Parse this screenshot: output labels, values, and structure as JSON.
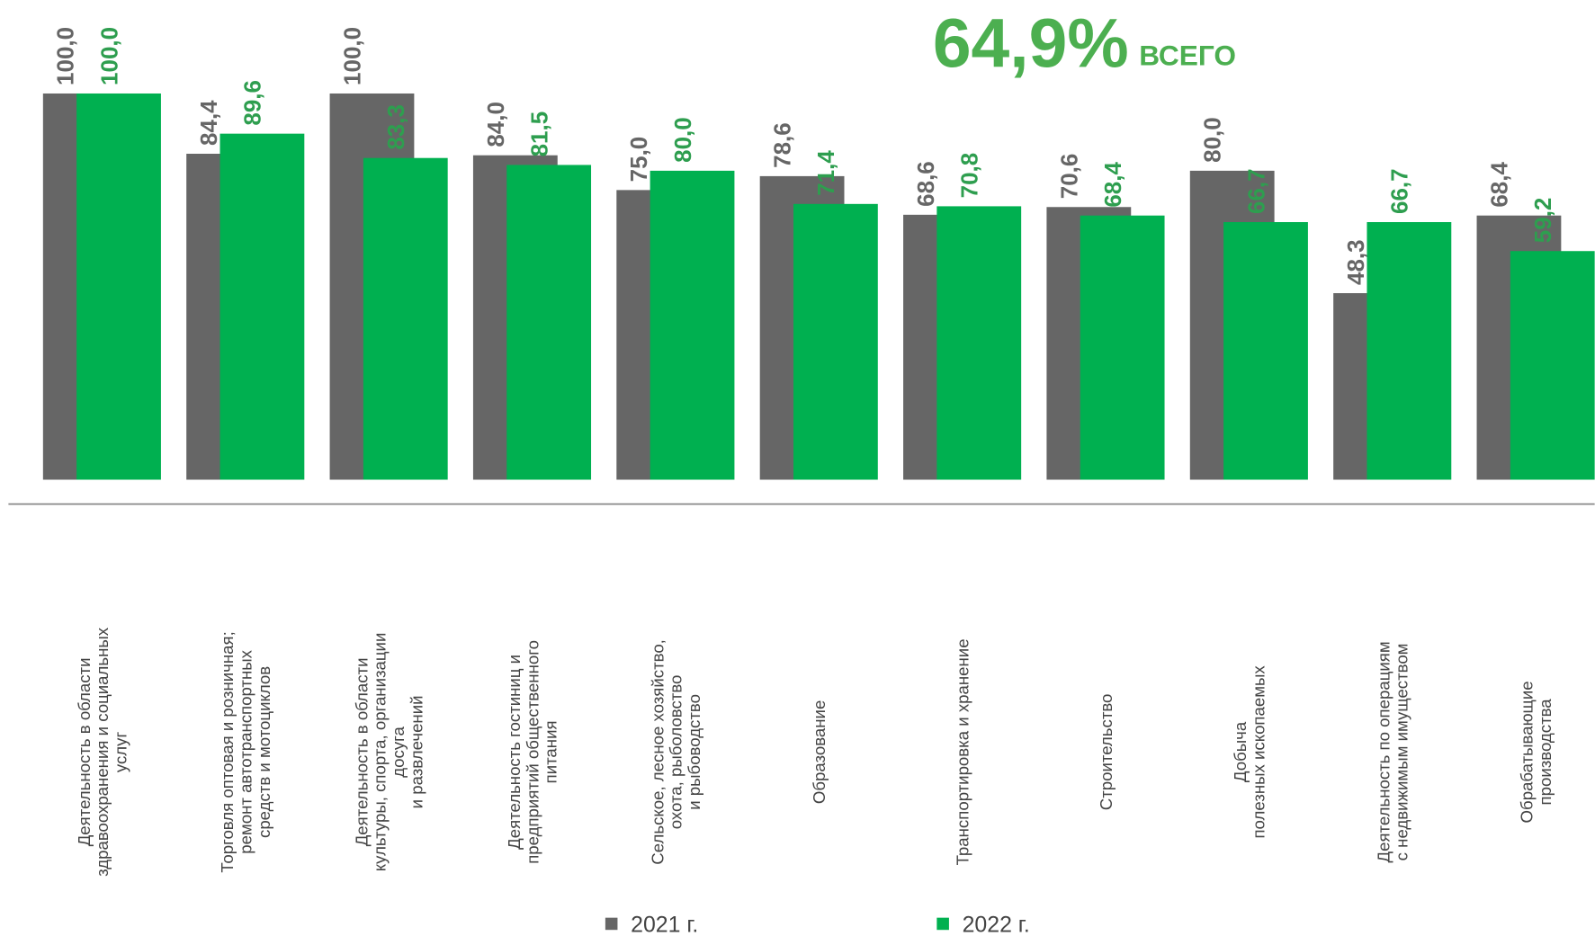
{
  "chart_data": {
    "type": "bar",
    "headline": "64,9%",
    "headline_note": "ВСЕГО",
    "categories": [
      [
        "Деятельность в области",
        "здравоохранения и социальных",
        "услуг"
      ],
      [
        "Торговля оптовая и розничная;",
        "ремонт автотранспортных",
        "средств и мотоциклов"
      ],
      [
        "Деятельность в области",
        "культуры, спорта, организации",
        "досуга",
        "и развлечений"
      ],
      [
        "Деятельность гостиниц и",
        "предприятий общественного",
        "питания"
      ],
      [
        "Сельское, лесное хозяйство,",
        "охота, рыболовство",
        "и  рыбоводство"
      ],
      [
        "Образование"
      ],
      [
        "Транспортировка и хранение"
      ],
      [
        "Строительство"
      ],
      [
        "Добыча",
        "полезных ископаемых"
      ],
      [
        "Деятельность по операциям",
        "с недвижимым имуществом"
      ],
      [
        "Обрабатывающие",
        "производства"
      ]
    ],
    "series": [
      {
        "name": "2021 г.",
        "color": "#666666",
        "values": [
          100,
          84.4,
          100,
          84,
          75,
          78.6,
          68.6,
          70.6,
          80,
          48.3,
          68.4
        ],
        "value_labels": [
          "100,0",
          "84,4",
          "100,0",
          "84,0",
          "75,0",
          "78,6",
          "68,6",
          "70,6",
          "80,0",
          "48,3",
          "68,4"
        ]
      },
      {
        "name": "2022 г.",
        "color": "#00b050",
        "values": [
          100,
          89.6,
          83.3,
          81.5,
          80,
          71.4,
          70.8,
          68.4,
          66.7,
          66.7,
          59.2
        ],
        "value_labels": [
          "100,0",
          "89,6",
          "83,3",
          "81,5",
          "80,0",
          "71,4",
          "70,8",
          "68,4",
          "66,7",
          "66,7",
          "59,2"
        ]
      }
    ],
    "ylim": [
      0,
      100
    ]
  }
}
